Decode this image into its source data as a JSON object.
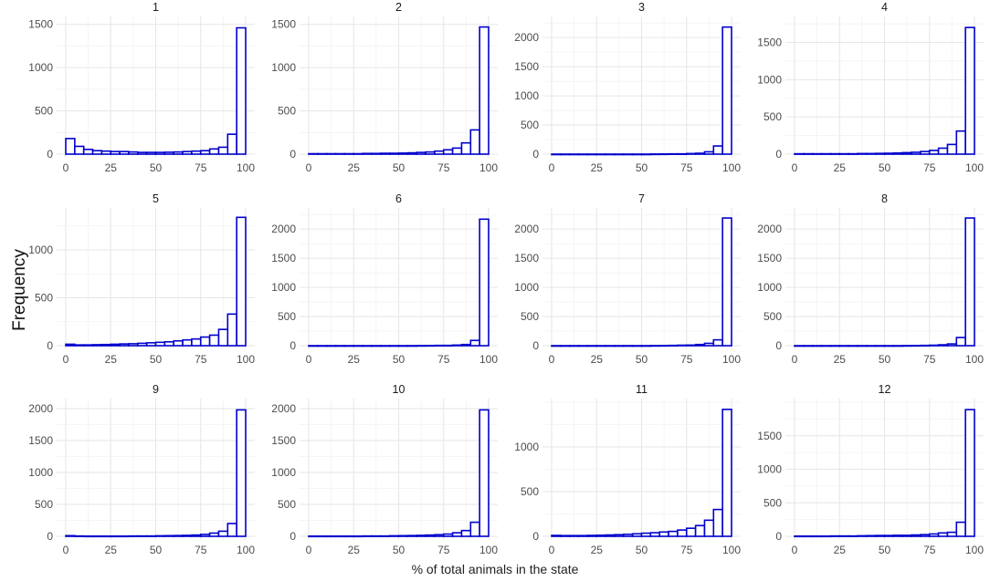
{
  "chart_data": {
    "type": "bar",
    "ylabel": "Frequency",
    "xlabel": "% of total animals in the state",
    "bar_color": "#0000cc",
    "grid": true,
    "xlim": [
      0,
      100
    ],
    "x_ticks": [
      0,
      25,
      50,
      75,
      100
    ],
    "bin_centers": [
      2.5,
      7.5,
      12.5,
      17.5,
      22.5,
      27.5,
      32.5,
      37.5,
      42.5,
      47.5,
      52.5,
      57.5,
      62.5,
      67.5,
      72.5,
      77.5,
      82.5,
      87.5,
      92.5,
      97.5
    ],
    "panels": [
      {
        "title": "1",
        "ylim": [
          0,
          1550
        ],
        "y_ticks": [
          0,
          500,
          1000,
          1500
        ],
        "values": [
          180,
          90,
          55,
          40,
          35,
          30,
          30,
          25,
          20,
          20,
          20,
          22,
          25,
          30,
          35,
          40,
          60,
          80,
          230,
          1460
        ]
      },
      {
        "title": "2",
        "ylim": [
          0,
          1550
        ],
        "y_ticks": [
          0,
          500,
          1000,
          1500
        ],
        "values": [
          5,
          5,
          5,
          5,
          5,
          5,
          8,
          8,
          10,
          10,
          12,
          15,
          20,
          25,
          35,
          50,
          70,
          130,
          280,
          1470
        ]
      },
      {
        "title": "3",
        "ylim": [
          0,
          2300
        ],
        "y_ticks": [
          0,
          500,
          1000,
          1500,
          2000
        ],
        "values": [
          0,
          0,
          0,
          0,
          0,
          0,
          0,
          0,
          0,
          0,
          0,
          2,
          3,
          5,
          5,
          10,
          15,
          40,
          140,
          2180
        ]
      },
      {
        "title": "4",
        "ylim": [
          0,
          1800
        ],
        "y_ticks": [
          0,
          500,
          1000,
          1500
        ],
        "values": [
          5,
          5,
          5,
          5,
          5,
          5,
          5,
          8,
          8,
          10,
          12,
          15,
          20,
          25,
          35,
          50,
          80,
          130,
          310,
          1700
        ]
      },
      {
        "title": "5",
        "ylim": [
          0,
          1400
        ],
        "y_ticks": [
          0,
          500,
          1000
        ],
        "values": [
          15,
          8,
          8,
          10,
          12,
          15,
          18,
          20,
          25,
          30,
          35,
          40,
          50,
          60,
          70,
          90,
          110,
          170,
          330,
          1340
        ]
      },
      {
        "title": "6",
        "ylim": [
          0,
          2300
        ],
        "y_ticks": [
          0,
          500,
          1000,
          1500,
          2000
        ],
        "values": [
          0,
          0,
          0,
          0,
          0,
          0,
          0,
          0,
          0,
          0,
          0,
          0,
          2,
          3,
          5,
          5,
          10,
          20,
          90,
          2170
        ]
      },
      {
        "title": "7",
        "ylim": [
          0,
          2300
        ],
        "y_ticks": [
          0,
          500,
          1000,
          1500,
          2000
        ],
        "values": [
          0,
          0,
          0,
          0,
          0,
          0,
          0,
          0,
          0,
          0,
          0,
          2,
          3,
          5,
          8,
          10,
          20,
          40,
          100,
          2190
        ]
      },
      {
        "title": "8",
        "ylim": [
          0,
          2300
        ],
        "y_ticks": [
          0,
          500,
          1000,
          1500,
          2000
        ],
        "values": [
          0,
          0,
          0,
          0,
          0,
          0,
          0,
          0,
          0,
          0,
          0,
          0,
          2,
          3,
          5,
          8,
          15,
          30,
          140,
          2190
        ]
      },
      {
        "title": "9",
        "ylim": [
          0,
          2100
        ],
        "y_ticks": [
          0,
          500,
          1000,
          1500,
          2000
        ],
        "values": [
          10,
          5,
          3,
          3,
          3,
          3,
          3,
          5,
          5,
          5,
          8,
          10,
          12,
          15,
          20,
          30,
          50,
          80,
          200,
          1980
        ]
      },
      {
        "title": "10",
        "ylim": [
          0,
          2100
        ],
        "y_ticks": [
          0,
          500,
          1000,
          1500,
          2000
        ],
        "values": [
          3,
          3,
          3,
          3,
          3,
          3,
          5,
          5,
          5,
          8,
          10,
          12,
          15,
          20,
          25,
          35,
          55,
          90,
          220,
          1980
        ]
      },
      {
        "title": "11",
        "ylim": [
          0,
          1500
        ],
        "y_ticks": [
          0,
          500,
          1000
        ],
        "values": [
          10,
          8,
          8,
          8,
          10,
          12,
          15,
          18,
          22,
          28,
          35,
          40,
          48,
          55,
          70,
          90,
          120,
          180,
          300,
          1420
        ]
      },
      {
        "title": "12",
        "ylim": [
          0,
          2000
        ],
        "y_ticks": [
          0,
          500,
          1000,
          1500
        ],
        "values": [
          3,
          3,
          3,
          3,
          5,
          5,
          5,
          8,
          10,
          12,
          12,
          15,
          15,
          20,
          25,
          35,
          50,
          60,
          210,
          1890
        ]
      }
    ]
  }
}
